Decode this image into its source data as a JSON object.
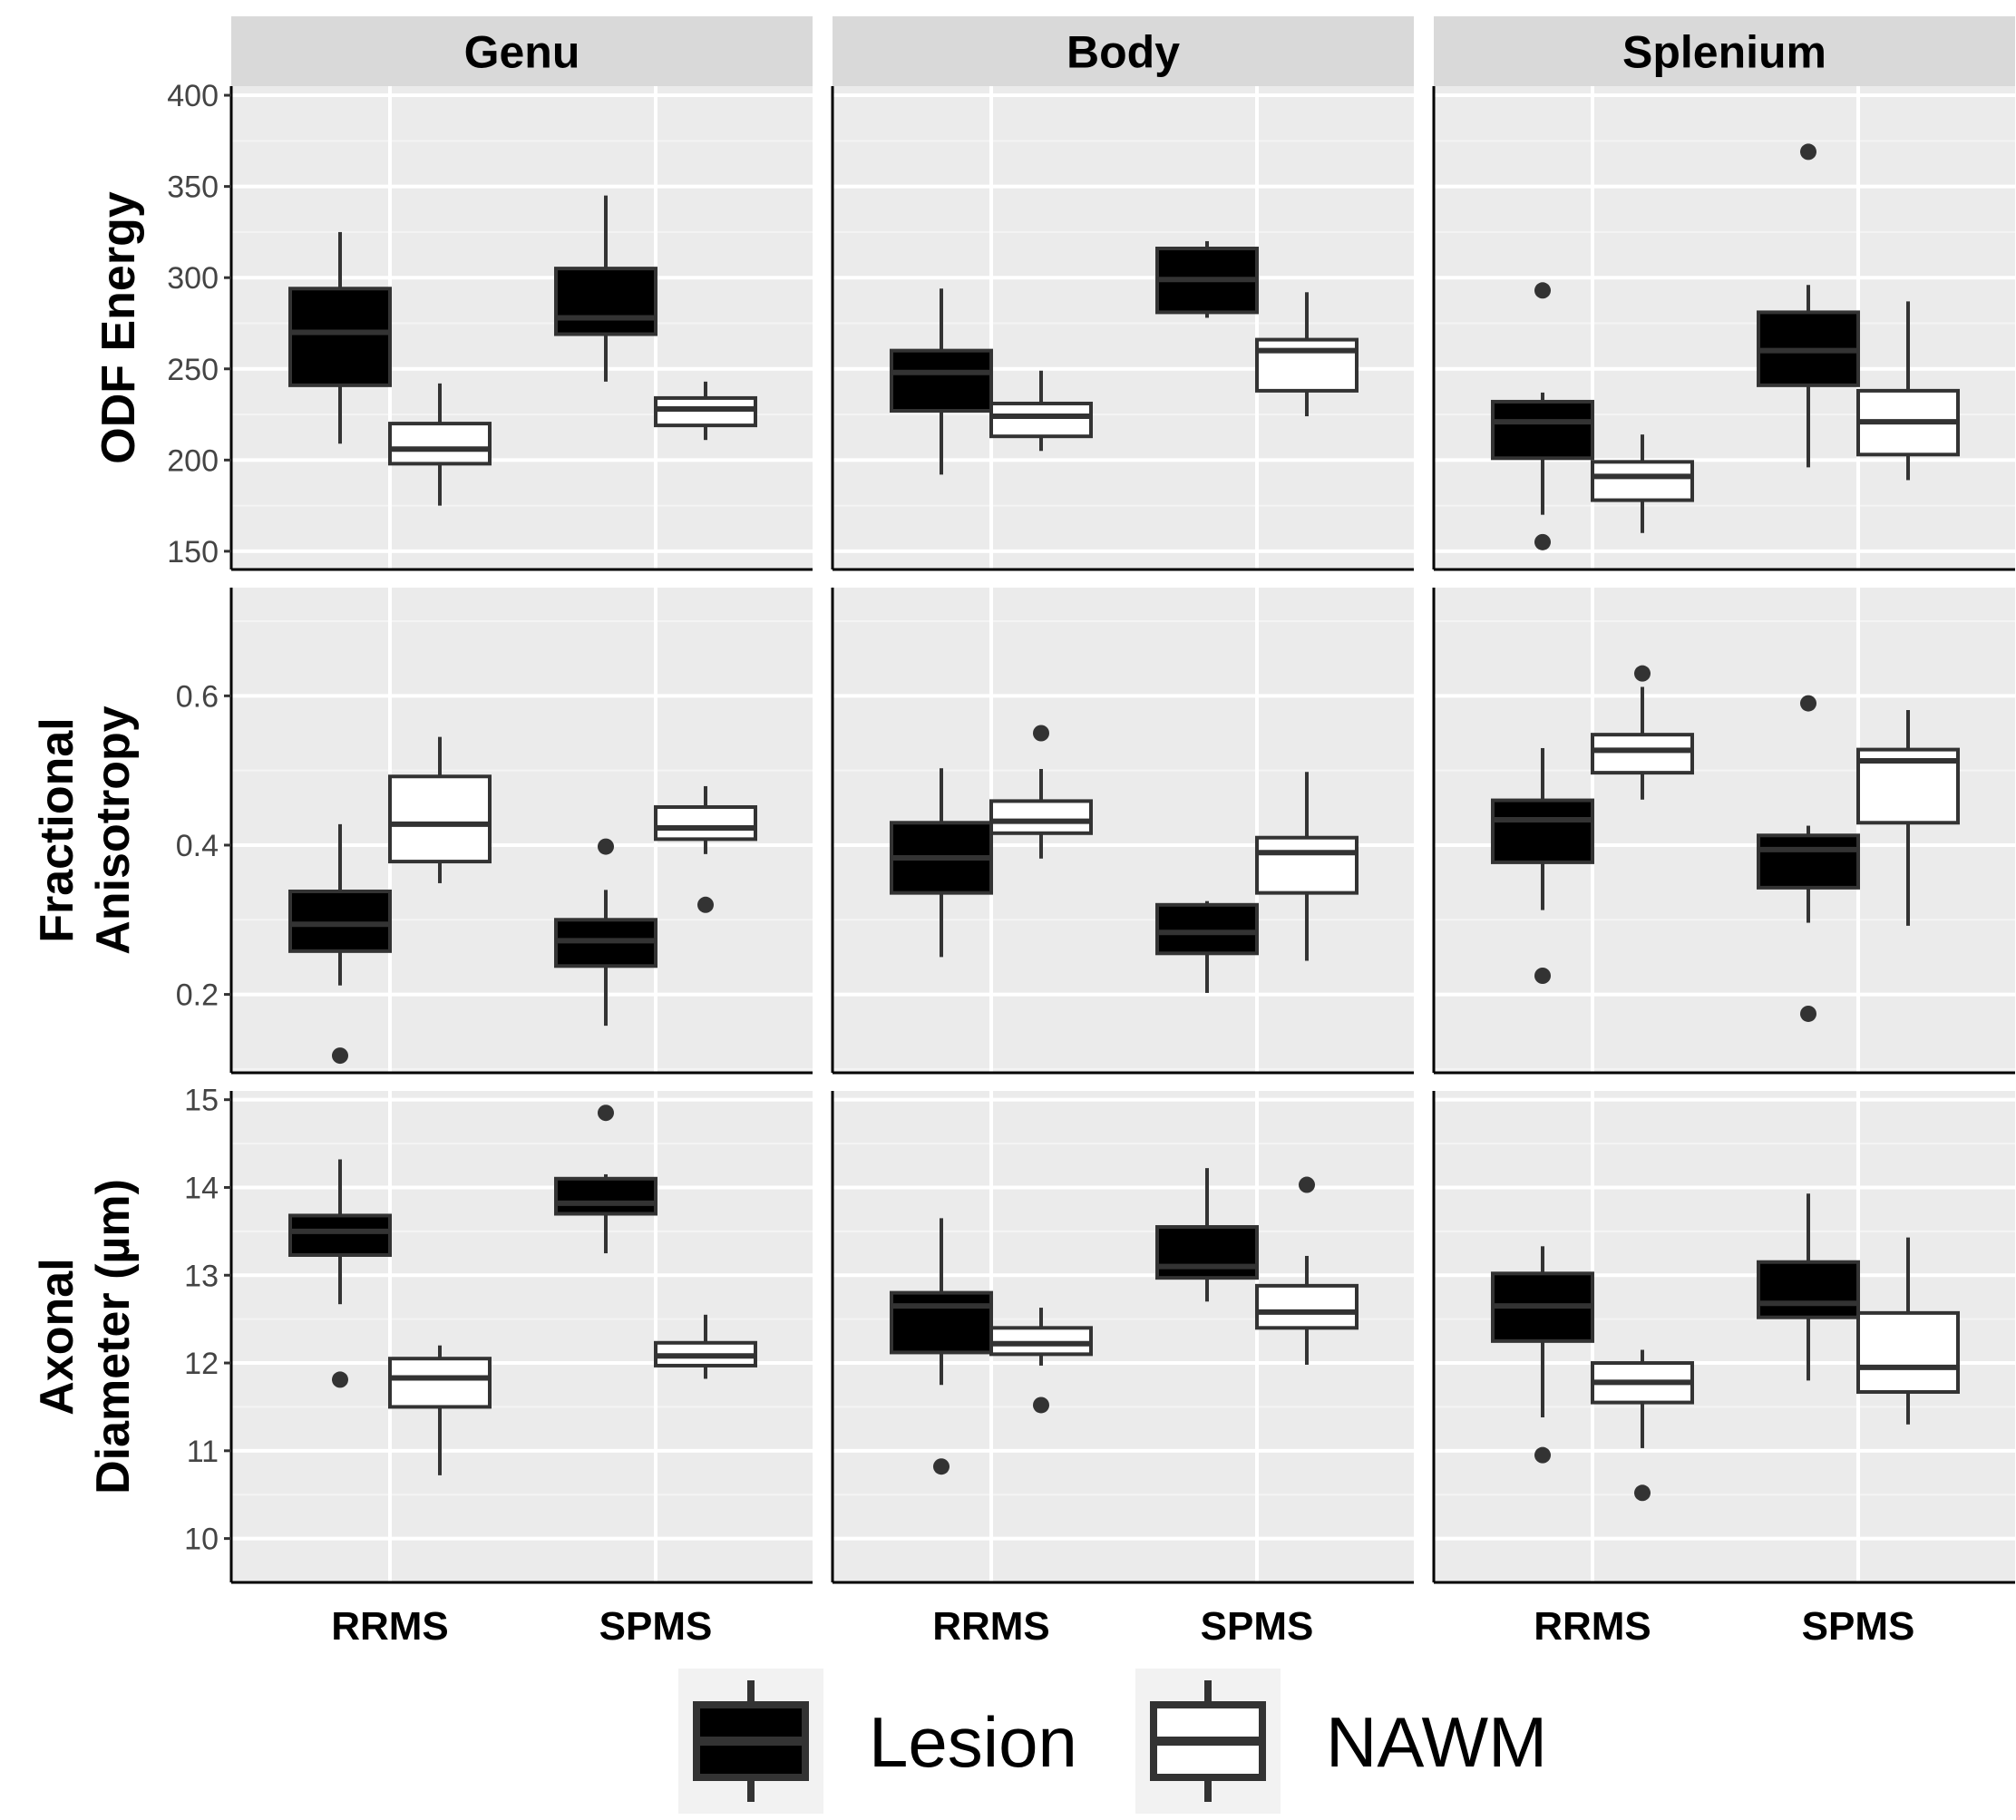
{
  "colors": {
    "panel_bg": "#ebebeb",
    "strip_bg": "#d9d9d9",
    "grid_major": "#ffffff",
    "grid_minor": "#f4f4f4",
    "box_stroke": "#333333",
    "lesion_fill": "#000000",
    "nawm_fill": "#ffffff",
    "outlier": "#333333",
    "legend_key_bg": "#f2f2f2"
  },
  "legend": {
    "items": [
      {
        "key": "Lesion",
        "label": "Lesion",
        "fill": "#000000"
      },
      {
        "key": "NAWM",
        "label": "NAWM",
        "fill": "#ffffff"
      }
    ]
  },
  "chart_data": {
    "type": "boxplot",
    "facet_columns": [
      "Genu",
      "Body",
      "Splenium"
    ],
    "categories": [
      "RRMS",
      "SPMS"
    ],
    "groups": [
      "Lesion",
      "NAWM"
    ],
    "rows": [
      {
        "ylabel_lines": [
          "ODF Energy"
        ],
        "ylim": [
          140,
          405
        ],
        "yticks": [
          150,
          200,
          250,
          300,
          350,
          400
        ],
        "tick_labels": [
          "150",
          "200",
          "250",
          "300",
          "350",
          "400"
        ],
        "panels": {
          "Genu": {
            "RRMS": {
              "Lesion": {
                "lo": 209,
                "q1": 241,
                "med": 270,
                "q3": 294,
                "hi": 325,
                "out": []
              },
              "NAWM": {
                "lo": 175,
                "q1": 198,
                "med": 206,
                "q3": 220,
                "hi": 242,
                "out": []
              }
            },
            "SPMS": {
              "Lesion": {
                "lo": 243,
                "q1": 269,
                "med": 278,
                "q3": 305,
                "hi": 345,
                "out": []
              },
              "NAWM": {
                "lo": 211,
                "q1": 219,
                "med": 228,
                "q3": 234,
                "hi": 243,
                "out": []
              }
            }
          },
          "Body": {
            "RRMS": {
              "Lesion": {
                "lo": 192,
                "q1": 227,
                "med": 248,
                "q3": 260,
                "hi": 294,
                "out": []
              },
              "NAWM": {
                "lo": 205,
                "q1": 213,
                "med": 224,
                "q3": 231,
                "hi": 249,
                "out": []
              }
            },
            "SPMS": {
              "Lesion": {
                "lo": 278,
                "q1": 281,
                "med": 299,
                "q3": 316,
                "hi": 320,
                "out": []
              },
              "NAWM": {
                "lo": 224,
                "q1": 238,
                "med": 260,
                "q3": 266,
                "hi": 292,
                "out": []
              }
            }
          },
          "Splenium": {
            "RRMS": {
              "Lesion": {
                "lo": 170,
                "q1": 201,
                "med": 221,
                "q3": 232,
                "hi": 237,
                "out": [
                  293,
                  155
                ]
              },
              "NAWM": {
                "lo": 160,
                "q1": 178,
                "med": 191,
                "q3": 199,
                "hi": 214,
                "out": []
              }
            },
            "SPMS": {
              "Lesion": {
                "lo": 196,
                "q1": 241,
                "med": 260,
                "q3": 281,
                "hi": 296,
                "out": [
                  369
                ]
              },
              "NAWM": {
                "lo": 189,
                "q1": 203,
                "med": 221,
                "q3": 238,
                "hi": 287,
                "out": []
              }
            }
          }
        }
      },
      {
        "ylabel_lines": [
          "Fractional",
          "Anisotropy"
        ],
        "ylim": [
          0.095,
          0.745
        ],
        "yticks": [
          0.2,
          0.4,
          0.6
        ],
        "tick_labels": [
          "0.2",
          "0.4",
          "0.6"
        ],
        "panels": {
          "Genu": {
            "RRMS": {
              "Lesion": {
                "lo": 0.212,
                "q1": 0.258,
                "med": 0.294,
                "q3": 0.338,
                "hi": 0.428,
                "out": [
                  0.118
                ]
              },
              "NAWM": {
                "lo": 0.349,
                "q1": 0.378,
                "med": 0.428,
                "q3": 0.492,
                "hi": 0.545,
                "out": []
              }
            },
            "SPMS": {
              "Lesion": {
                "lo": 0.158,
                "q1": 0.238,
                "med": 0.272,
                "q3": 0.3,
                "hi": 0.34,
                "out": [
                  0.398
                ]
              },
              "NAWM": {
                "lo": 0.388,
                "q1": 0.408,
                "med": 0.423,
                "q3": 0.451,
                "hi": 0.479,
                "out": [
                  0.32
                ]
              }
            }
          },
          "Body": {
            "RRMS": {
              "Lesion": {
                "lo": 0.25,
                "q1": 0.336,
                "med": 0.383,
                "q3": 0.43,
                "hi": 0.503,
                "out": []
              },
              "NAWM": {
                "lo": 0.382,
                "q1": 0.416,
                "med": 0.432,
                "q3": 0.459,
                "hi": 0.502,
                "out": [
                  0.55
                ]
              }
            },
            "SPMS": {
              "Lesion": {
                "lo": 0.202,
                "q1": 0.255,
                "med": 0.283,
                "q3": 0.32,
                "hi": 0.325,
                "out": []
              },
              "NAWM": {
                "lo": 0.245,
                "q1": 0.336,
                "med": 0.39,
                "q3": 0.41,
                "hi": 0.498,
                "out": []
              }
            }
          },
          "Splenium": {
            "RRMS": {
              "Lesion": {
                "lo": 0.313,
                "q1": 0.377,
                "med": 0.434,
                "q3": 0.46,
                "hi": 0.53,
                "out": [
                  0.225
                ]
              },
              "NAWM": {
                "lo": 0.461,
                "q1": 0.497,
                "med": 0.527,
                "q3": 0.548,
                "hi": 0.612,
                "out": [
                  0.63
                ]
              }
            },
            "SPMS": {
              "Lesion": {
                "lo": 0.296,
                "q1": 0.343,
                "med": 0.394,
                "q3": 0.413,
                "hi": 0.426,
                "out": [
                  0.59,
                  0.174
                ]
              },
              "NAWM": {
                "lo": 0.292,
                "q1": 0.43,
                "med": 0.513,
                "q3": 0.528,
                "hi": 0.581,
                "out": []
              }
            }
          }
        }
      },
      {
        "ylabel_lines": [
          "Axonal",
          "Diameter (µm)"
        ],
        "ylim": [
          9.5,
          15.1
        ],
        "yticks": [
          10,
          11,
          12,
          13,
          14,
          15
        ],
        "tick_labels": [
          "10",
          "11",
          "12",
          "13",
          "14",
          "15"
        ],
        "panels": {
          "Genu": {
            "RRMS": {
              "Lesion": {
                "lo": 12.67,
                "q1": 13.23,
                "med": 13.5,
                "q3": 13.68,
                "hi": 14.32,
                "out": [
                  11.81
                ]
              },
              "NAWM": {
                "lo": 10.72,
                "q1": 11.5,
                "med": 11.83,
                "q3": 12.05,
                "hi": 12.2,
                "out": []
              }
            },
            "SPMS": {
              "Lesion": {
                "lo": 13.25,
                "q1": 13.7,
                "med": 13.82,
                "q3": 14.1,
                "hi": 14.15,
                "out": [
                  14.85
                ]
              },
              "NAWM": {
                "lo": 11.82,
                "q1": 11.97,
                "med": 12.08,
                "q3": 12.23,
                "hi": 12.55,
                "out": []
              }
            }
          },
          "Body": {
            "RRMS": {
              "Lesion": {
                "lo": 11.75,
                "q1": 12.12,
                "med": 12.65,
                "q3": 12.8,
                "hi": 13.65,
                "out": [
                  10.82
                ]
              },
              "NAWM": {
                "lo": 11.97,
                "q1": 12.1,
                "med": 12.22,
                "q3": 12.4,
                "hi": 12.63,
                "out": [
                  11.52
                ]
              }
            },
            "SPMS": {
              "Lesion": {
                "lo": 12.7,
                "q1": 12.97,
                "med": 13.1,
                "q3": 13.55,
                "hi": 14.22,
                "out": []
              },
              "NAWM": {
                "lo": 11.98,
                "q1": 12.4,
                "med": 12.58,
                "q3": 12.88,
                "hi": 13.22,
                "out": [
                  14.03
                ]
              }
            }
          },
          "Splenium": {
            "RRMS": {
              "Lesion": {
                "lo": 11.38,
                "q1": 12.25,
                "med": 12.65,
                "q3": 13.02,
                "hi": 13.33,
                "out": [
                  10.95
                ]
              },
              "NAWM": {
                "lo": 11.03,
                "q1": 11.55,
                "med": 11.78,
                "q3": 12.0,
                "hi": 12.15,
                "out": [
                  10.52
                ]
              }
            },
            "SPMS": {
              "Lesion": {
                "lo": 11.8,
                "q1": 12.52,
                "med": 12.68,
                "q3": 13.15,
                "hi": 13.93,
                "out": []
              },
              "NAWM": {
                "lo": 11.3,
                "q1": 11.67,
                "med": 11.95,
                "q3": 12.57,
                "hi": 13.43,
                "out": []
              }
            }
          }
        }
      }
    ]
  }
}
